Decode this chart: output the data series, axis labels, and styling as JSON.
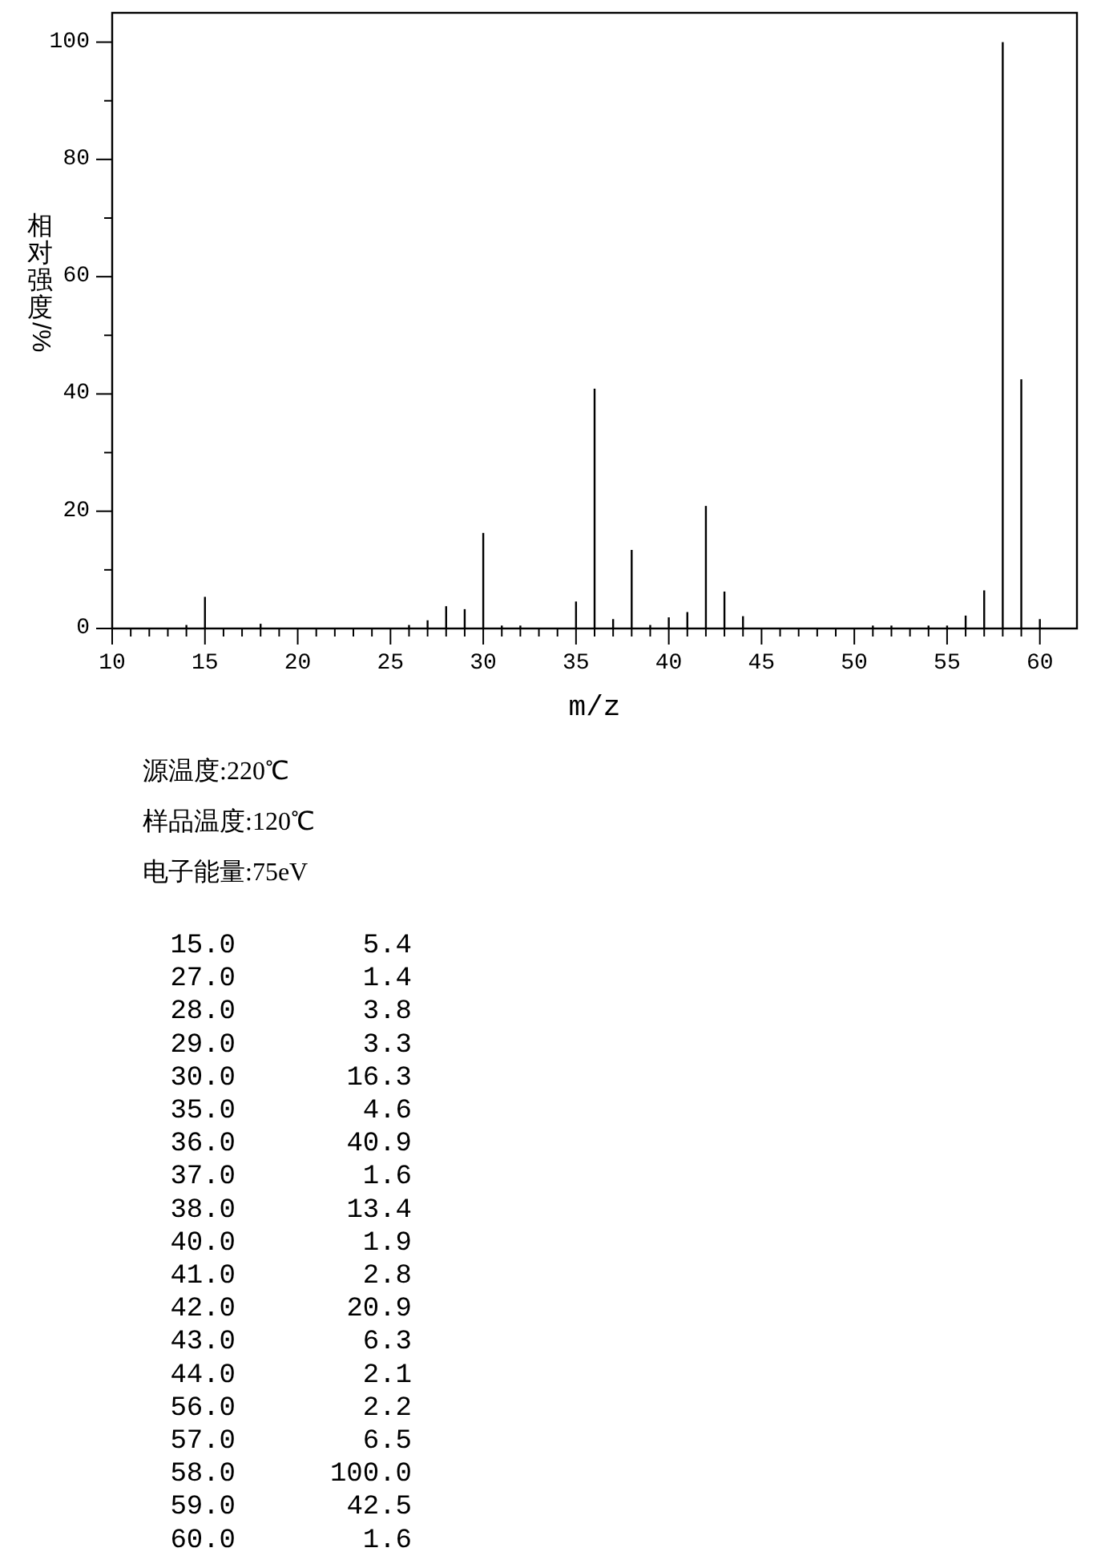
{
  "chart_data": {
    "type": "bar",
    "xlabel": "m/z",
    "ylabel": "相对强度/%",
    "annotations": [
      "源温度:220℃",
      "样品温度:120℃",
      "电子能量:75eV",
      "15.0 5.4",
      "27.0 1.4",
      "28.0 3.8",
      "29.0 3.3",
      "30.0 16.3",
      "35.0 4.6",
      "36.0 40.9",
      "37.0 1.6",
      "38.0 13.4",
      "40.0 1.9",
      "41.0 2.8",
      "42.0 20.9",
      "43.0 6.3",
      "44.0 2.1",
      "56.0 2.2",
      "57.0 6.5",
      "58.0 100.0",
      "59.0 42.5",
      "60.0 1.6"
    ],
    "x": [
      14,
      15,
      18,
      26,
      27,
      28,
      29,
      30,
      31,
      32,
      35,
      36,
      37,
      38,
      39,
      40,
      41,
      42,
      43,
      44,
      51,
      52,
      54,
      55,
      56,
      57,
      58,
      59,
      60
    ],
    "values": [
      0.6,
      5.4,
      0.8,
      0.6,
      1.4,
      3.8,
      3.3,
      16.3,
      0.5,
      0.5,
      4.6,
      40.9,
      1.6,
      13.4,
      0.6,
      1.9,
      2.8,
      20.9,
      6.3,
      2.1,
      0.5,
      0.5,
      0.5,
      0.5,
      2.2,
      6.5,
      100,
      42.5,
      1.6
    ],
    "color": "#000000",
    "xlim": [
      10,
      62
    ],
    "ylim": [
      0,
      105
    ],
    "xticks": [
      10,
      {
        "value": 11,
        "label": null
      },
      {
        "value": 12,
        "label": null
      },
      {
        "value": 13,
        "label": null
      },
      {
        "value": 14,
        "label": null
      },
      15,
      {
        "value": 16,
        "label": null
      },
      {
        "value": 17,
        "label": null
      },
      {
        "value": 18,
        "label": null
      },
      {
        "value": 19,
        "label": null
      },
      20,
      {
        "value": 21,
        "label": null
      },
      {
        "value": 22,
        "label": null
      },
      {
        "value": 23,
        "label": null
      },
      {
        "value": 24,
        "label": null
      },
      25,
      {
        "value": 26,
        "label": null
      },
      {
        "value": 27,
        "label": null
      },
      {
        "value": 28,
        "label": null
      },
      {
        "value": 29,
        "label": null
      },
      30,
      {
        "value": 31,
        "label": null
      },
      {
        "value": 32,
        "label": null
      },
      {
        "value": 33,
        "label": null
      },
      {
        "value": 34,
        "label": null
      },
      35,
      {
        "value": 36,
        "label": null
      },
      {
        "value": 37,
        "label": null
      },
      {
        "value": 38,
        "label": null
      },
      {
        "value": 39,
        "label": null
      },
      40,
      {
        "value": 41,
        "label": null
      },
      {
        "value": 42,
        "label": null
      },
      {
        "value": 43,
        "label": null
      },
      {
        "value": 44,
        "label": null
      },
      45,
      {
        "value": 46,
        "label": null
      },
      {
        "value": 47,
        "label": null
      },
      {
        "value": 48,
        "label": null
      },
      {
        "value": 49,
        "label": null
      },
      50,
      {
        "value": 51,
        "label": null
      },
      {
        "value": 52,
        "label": null
      },
      {
        "value": 53,
        "label": null
      },
      {
        "value": 54,
        "label": null
      },
      55,
      {
        "value": 56,
        "label": null
      },
      {
        "value": 57,
        "label": null
      },
      {
        "value": 58,
        "label": null
      },
      {
        "value": 59,
        "label": null
      },
      60
    ],
    "yticks": [
      0,
      {
        "value": 10,
        "label": null
      },
      20,
      {
        "value": 30,
        "label": null
      },
      40,
      {
        "value": 50,
        "label": null
      },
      60,
      {
        "value": 70,
        "label": null
      },
      80,
      {
        "value": 90,
        "label": null
      },
      100
    ]
  }
}
